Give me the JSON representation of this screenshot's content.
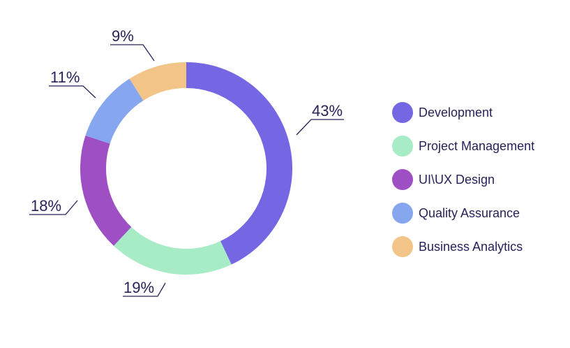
{
  "chart_data": {
    "type": "pie",
    "donut": true,
    "title": "",
    "legend_position": "right",
    "categories": [
      "Development",
      "Project Management",
      "UI\\UX Design",
      "Quality Assurance",
      "Business Analytics"
    ],
    "values": [
      43,
      19,
      18,
      11,
      9
    ],
    "value_labels": [
      "43%",
      "19%",
      "18%",
      "11%",
      "9%"
    ],
    "colors": [
      "#7566e3",
      "#a8ebc7",
      "#9e4fc4",
      "#87a6f0",
      "#f2c488"
    ],
    "start": "top, clockwise"
  }
}
